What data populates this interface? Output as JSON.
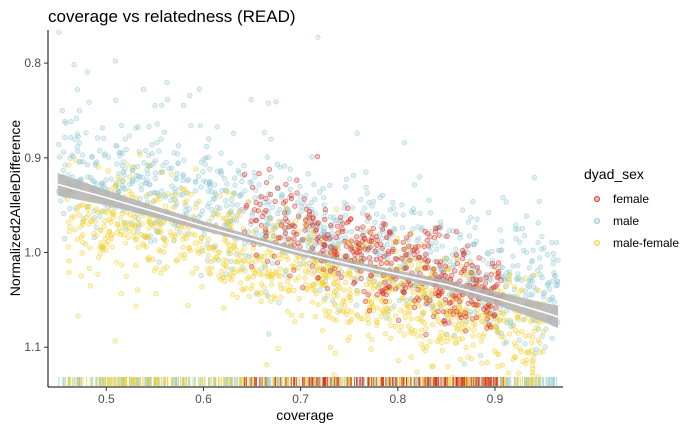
{
  "chart_data": {
    "type": "scatter",
    "title": "coverage vs relatedness (READ)",
    "xlabel": "coverage",
    "ylabel": "Normalized2AlleleDifference",
    "xlim": [
      0.44,
      0.97
    ],
    "ylim": [
      0.765,
      1.142
    ],
    "y_reversed": true,
    "x_ticks": [
      0.5,
      0.6,
      0.7,
      0.8,
      0.9
    ],
    "x_tick_labels": [
      "0.5",
      "0.6",
      "0.7",
      "0.8",
      "0.9"
    ],
    "y_ticks": [
      0.8,
      0.9,
      1.0,
      1.1
    ],
    "y_tick_labels": [
      "0.8",
      "0.9",
      "1.0",
      "1.1"
    ],
    "grid": false,
    "rug": "x",
    "legend": {
      "title": "dyad_sex",
      "placement": "right",
      "entries": [
        "female",
        "male",
        "male-female"
      ]
    },
    "series": [
      {
        "name": "female",
        "color": "#d7261e",
        "x_range": [
          0.64,
          0.91
        ],
        "trend": [
          [
            0.64,
            0.95
          ],
          [
            0.72,
            0.985
          ],
          [
            0.8,
            1.015
          ],
          [
            0.88,
            1.04
          ],
          [
            0.91,
            1.05
          ]
        ]
      },
      {
        "name": "male",
        "color": "#8ec7d2",
        "x_range": [
          0.45,
          0.965
        ],
        "trend": [
          [
            0.45,
            0.915
          ],
          [
            0.55,
            0.935
          ],
          [
            0.65,
            0.965
          ],
          [
            0.75,
            0.99
          ],
          [
            0.85,
            1.015
          ],
          [
            0.965,
            1.045
          ]
        ]
      },
      {
        "name": "male-female",
        "color": "#f0d030",
        "x_range": [
          0.46,
          0.95
        ],
        "trend": [
          [
            0.46,
            0.96
          ],
          [
            0.55,
            0.97
          ],
          [
            0.65,
            1.005
          ],
          [
            0.75,
            1.035
          ],
          [
            0.85,
            1.06
          ],
          [
            0.95,
            1.085
          ]
        ]
      }
    ],
    "smooth": {
      "line_color": "#ffffff",
      "band_color": "#b3b3b3",
      "x": [
        0.45,
        0.5,
        0.55,
        0.6,
        0.65,
        0.7,
        0.75,
        0.8,
        0.85,
        0.9,
        0.95,
        0.965
      ],
      "y": [
        0.928,
        0.942,
        0.957,
        0.972,
        0.986,
        1.0,
        1.012,
        1.023,
        1.034,
        1.048,
        1.063,
        1.068
      ],
      "se": [
        0.012,
        0.008,
        0.006,
        0.005,
        0.004,
        0.004,
        0.004,
        0.004,
        0.005,
        0.007,
        0.01,
        0.012
      ]
    }
  }
}
